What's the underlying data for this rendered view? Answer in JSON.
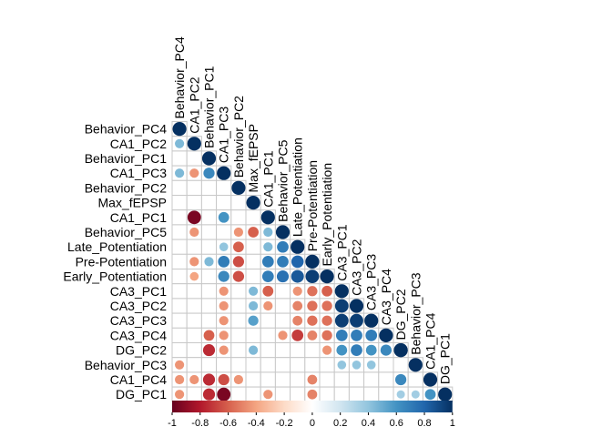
{
  "chart_data": {
    "type": "heatmap",
    "variables": [
      "Behavior_PC4",
      "CA1_PC2",
      "Behavior_PC1",
      "CA1_PC3",
      "Behavior_PC2",
      "Max_fEPSP",
      "CA1_PC1",
      "Behavior_PC5",
      "Late_Potentiation",
      "Pre-Potentiation",
      "Early_Potentiation",
      "CA3_PC1",
      "CA3_PC2",
      "CA3_PC3",
      "CA3_PC4",
      "DG_PC2",
      "Behavior_PC3",
      "CA1_PC4",
      "DG_PC1"
    ],
    "matrix_shape": "lower-triangular",
    "diagonal": 1,
    "entries": [
      {
        "row": "CA1_PC2",
        "col": "Behavior_PC4",
        "value": 0.45
      },
      {
        "row": "CA1_PC3",
        "col": "Behavior_PC4",
        "value": 0.45
      },
      {
        "row": "CA1_PC3",
        "col": "CA1_PC2",
        "value": -0.45
      },
      {
        "row": "CA1_PC3",
        "col": "Behavior_PC1",
        "value": 0.65
      },
      {
        "row": "CA1_PC1",
        "col": "CA1_PC2",
        "value": -0.95
      },
      {
        "row": "CA1_PC1",
        "col": "CA1_PC3",
        "value": 0.6
      },
      {
        "row": "Behavior_PC5",
        "col": "CA1_PC2",
        "value": -0.45
      },
      {
        "row": "Behavior_PC5",
        "col": "Behavior_PC2",
        "value": -0.45
      },
      {
        "row": "Behavior_PC5",
        "col": "Max_fEPSP",
        "value": -0.6
      },
      {
        "row": "Behavior_PC5",
        "col": "CA1_PC1",
        "value": 0.45
      },
      {
        "row": "Late_Potentiation",
        "col": "CA1_PC3",
        "value": 0.4
      },
      {
        "row": "Late_Potentiation",
        "col": "Behavior_PC2",
        "value": -0.6
      },
      {
        "row": "Late_Potentiation",
        "col": "CA1_PC1",
        "value": 0.45
      },
      {
        "row": "Late_Potentiation",
        "col": "Behavior_PC5",
        "value": 0.7
      },
      {
        "row": "Pre-Potentiation",
        "col": "CA1_PC2",
        "value": -0.45
      },
      {
        "row": "Pre-Potentiation",
        "col": "Behavior_PC1",
        "value": 0.45
      },
      {
        "row": "Pre-Potentiation",
        "col": "CA1_PC3",
        "value": 0.7
      },
      {
        "row": "Pre-Potentiation",
        "col": "Behavior_PC2",
        "value": -0.65
      },
      {
        "row": "Pre-Potentiation",
        "col": "CA1_PC1",
        "value": 0.7
      },
      {
        "row": "Pre-Potentiation",
        "col": "Behavior_PC5",
        "value": 0.7
      },
      {
        "row": "Pre-Potentiation",
        "col": "Late_Potentiation",
        "value": 0.8
      },
      {
        "row": "Early_Potentiation",
        "col": "CA1_PC2",
        "value": -0.4
      },
      {
        "row": "Early_Potentiation",
        "col": "CA1_PC3",
        "value": 0.65
      },
      {
        "row": "Early_Potentiation",
        "col": "Behavior_PC2",
        "value": -0.65
      },
      {
        "row": "Early_Potentiation",
        "col": "CA1_PC1",
        "value": 0.7
      },
      {
        "row": "Early_Potentiation",
        "col": "Behavior_PC5",
        "value": 0.75
      },
      {
        "row": "Early_Potentiation",
        "col": "Late_Potentiation",
        "value": 0.85
      },
      {
        "row": "Early_Potentiation",
        "col": "Pre-Potentiation",
        "value": 0.95
      },
      {
        "row": "CA3_PC1",
        "col": "CA1_PC3",
        "value": -0.45
      },
      {
        "row": "CA3_PC1",
        "col": "Max_fEPSP",
        "value": 0.45
      },
      {
        "row": "CA3_PC1",
        "col": "CA1_PC1",
        "value": -0.6
      },
      {
        "row": "CA3_PC1",
        "col": "Late_Potentiation",
        "value": -0.45
      },
      {
        "row": "CA3_PC1",
        "col": "Pre-Potentiation",
        "value": -0.55
      },
      {
        "row": "CA3_PC1",
        "col": "Early_Potentiation",
        "value": -0.6
      },
      {
        "row": "CA3_PC2",
        "col": "CA1_PC3",
        "value": -0.45
      },
      {
        "row": "CA3_PC2",
        "col": "Max_fEPSP",
        "value": 0.45
      },
      {
        "row": "CA3_PC2",
        "col": "CA1_PC1",
        "value": -0.45
      },
      {
        "row": "CA3_PC2",
        "col": "Late_Potentiation",
        "value": -0.5
      },
      {
        "row": "CA3_PC2",
        "col": "Pre-Potentiation",
        "value": -0.55
      },
      {
        "row": "CA3_PC2",
        "col": "Early_Potentiation",
        "value": -0.55
      },
      {
        "row": "CA3_PC2",
        "col": "CA3_PC1",
        "value": 0.95
      },
      {
        "row": "CA3_PC3",
        "col": "CA1_PC3",
        "value": -0.45
      },
      {
        "row": "CA3_PC3",
        "col": "Max_fEPSP",
        "value": 0.55
      },
      {
        "row": "CA3_PC3",
        "col": "Late_Potentiation",
        "value": -0.5
      },
      {
        "row": "CA3_PC3",
        "col": "Pre-Potentiation",
        "value": -0.55
      },
      {
        "row": "CA3_PC3",
        "col": "Early_Potentiation",
        "value": -0.55
      },
      {
        "row": "CA3_PC3",
        "col": "CA3_PC1",
        "value": 0.95
      },
      {
        "row": "CA3_PC3",
        "col": "CA3_PC2",
        "value": 0.95
      },
      {
        "row": "CA3_PC4",
        "col": "Behavior_PC1",
        "value": -0.6
      },
      {
        "row": "CA3_PC4",
        "col": "CA1_PC3",
        "value": -0.45
      },
      {
        "row": "CA3_PC4",
        "col": "Behavior_PC5",
        "value": -0.45
      },
      {
        "row": "CA3_PC4",
        "col": "Late_Potentiation",
        "value": -0.7
      },
      {
        "row": "CA3_PC4",
        "col": "Pre-Potentiation",
        "value": -0.5
      },
      {
        "row": "CA3_PC4",
        "col": "Early_Potentiation",
        "value": -0.55
      },
      {
        "row": "CA3_PC4",
        "col": "CA3_PC1",
        "value": 0.7
      },
      {
        "row": "CA3_PC4",
        "col": "CA3_PC2",
        "value": 0.7
      },
      {
        "row": "CA3_PC4",
        "col": "CA3_PC3",
        "value": 0.7
      },
      {
        "row": "DG_PC2",
        "col": "Behavior_PC1",
        "value": -0.75
      },
      {
        "row": "DG_PC2",
        "col": "CA1_PC3",
        "value": -0.45
      },
      {
        "row": "DG_PC2",
        "col": "Max_fEPSP",
        "value": 0.45
      },
      {
        "row": "DG_PC2",
        "col": "Early_Potentiation",
        "value": -0.45
      },
      {
        "row": "DG_PC2",
        "col": "CA3_PC1",
        "value": 0.6
      },
      {
        "row": "DG_PC2",
        "col": "CA3_PC2",
        "value": 0.7
      },
      {
        "row": "DG_PC2",
        "col": "CA3_PC3",
        "value": 0.6
      },
      {
        "row": "DG_PC2",
        "col": "CA3_PC4",
        "value": 0.65
      },
      {
        "row": "DG_PC2",
        "col": "DG_PC2",
        "value": 1
      },
      {
        "row": "Behavior_PC3",
        "col": "Behavior_PC4",
        "value": -0.45
      },
      {
        "row": "Behavior_PC3",
        "col": "CA3_PC1",
        "value": 0.4
      },
      {
        "row": "Behavior_PC3",
        "col": "CA3_PC2",
        "value": 0.4
      },
      {
        "row": "Behavior_PC3",
        "col": "CA3_PC3",
        "value": 0.4
      },
      {
        "row": "CA1_PC4",
        "col": "Behavior_PC4",
        "value": -0.45
      },
      {
        "row": "CA1_PC4",
        "col": "CA1_PC2",
        "value": -0.45
      },
      {
        "row": "CA1_PC4",
        "col": "Behavior_PC1",
        "value": -0.75
      },
      {
        "row": "CA1_PC4",
        "col": "CA1_PC3",
        "value": -0.65
      },
      {
        "row": "CA1_PC4",
        "col": "Behavior_PC2",
        "value": -0.45
      },
      {
        "row": "CA1_PC4",
        "col": "Pre-Potentiation",
        "value": -0.5
      },
      {
        "row": "CA1_PC4",
        "col": "DG_PC2",
        "value": 0.65
      },
      {
        "row": "DG_PC1",
        "col": "Behavior_PC4",
        "value": -0.45
      },
      {
        "row": "DG_PC1",
        "col": "Behavior_PC1",
        "value": -0.75
      },
      {
        "row": "DG_PC1",
        "col": "CA1_PC3",
        "value": -0.95
      },
      {
        "row": "DG_PC1",
        "col": "CA1_PC1",
        "value": -0.45
      },
      {
        "row": "DG_PC1",
        "col": "Pre-Potentiation",
        "value": -0.5
      },
      {
        "row": "DG_PC1",
        "col": "DG_PC2",
        "value": 0.35
      },
      {
        "row": "DG_PC1",
        "col": "Behavior_PC3",
        "value": 0.35
      },
      {
        "row": "DG_PC1",
        "col": "CA1_PC4",
        "value": 0.6
      }
    ],
    "colorbar": {
      "range": [
        -1,
        1
      ],
      "ticks": [
        "-1",
        "-0.8",
        "-0.6",
        "-0.4",
        "-0.2",
        "0",
        "0.2",
        "0.4",
        "0.6",
        "0.8",
        "1"
      ],
      "colors": [
        "#67001F",
        "#B2182B",
        "#D6604D",
        "#F4A582",
        "#FDDBC7",
        "#FFFFFF",
        "#D1E5F0",
        "#92C5DE",
        "#4393C3",
        "#2166AC",
        "#053061"
      ]
    },
    "legend_placement": "bottom",
    "grid": true
  }
}
